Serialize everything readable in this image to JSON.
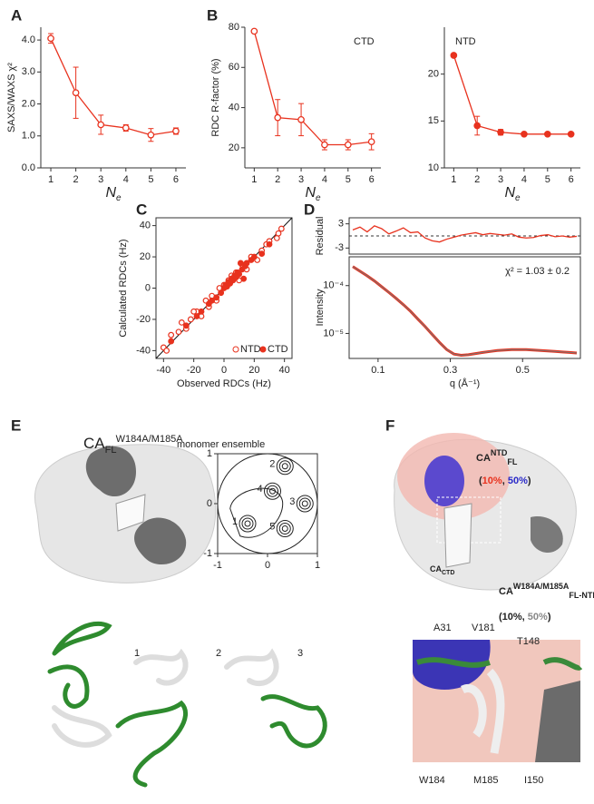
{
  "chart_data": [
    {
      "panel": "A",
      "type": "line",
      "y_label": "SAXS/WAXS χ²",
      "x_label": "N",
      "x_label_sub": "e",
      "x": [
        1,
        2,
        3,
        4,
        5,
        6
      ],
      "values": [
        4.05,
        2.35,
        1.35,
        1.25,
        1.03,
        1.15
      ],
      "errors": [
        0.15,
        0.8,
        0.3,
        0.1,
        0.2,
        0.1
      ],
      "color": "#e8321e",
      "marker": "open",
      "frame": "axes",
      "xlim": [
        0.6,
        6.4
      ],
      "xticks": [
        1,
        2,
        3,
        4,
        5,
        6
      ],
      "ylim": [
        0,
        4.4
      ],
      "yticks": [
        {
          "value": 0,
          "label": "0.0"
        },
        {
          "value": 1,
          "label": "1.0"
        },
        {
          "value": 2,
          "label": "2.0"
        },
        {
          "value": 3,
          "label": "3.0"
        },
        {
          "value": 4,
          "label": "4.0"
        }
      ]
    },
    {
      "panel": "B",
      "type": "line",
      "y_label": "RDC R-factor (%)",
      "x_label": "N",
      "x_label_sub": "e",
      "annotation": "CTD",
      "x": [
        1,
        2,
        3,
        4,
        5,
        6
      ],
      "values": [
        78,
        35,
        34,
        21.5,
        21.5,
        23
      ],
      "errors": [
        0,
        9,
        8,
        2.5,
        2.5,
        4
      ],
      "color": "#e8321e",
      "marker": "open",
      "frame": "axes",
      "xlim": [
        0.6,
        6.4
      ],
      "xticks": [
        1,
        2,
        3,
        4,
        5,
        6
      ],
      "ylim": [
        10,
        80
      ],
      "yticks": [
        20,
        40,
        60,
        80
      ]
    },
    {
      "type": "line",
      "x_label": "N",
      "x_label_sub": "e",
      "annotation": "NTD",
      "x": [
        1,
        2,
        3,
        4,
        5,
        6
      ],
      "values": [
        22,
        14.5,
        13.8,
        13.6,
        13.6,
        13.6
      ],
      "errors": [
        0,
        1,
        0.3,
        0,
        0,
        0
      ],
      "color": "#e8321e",
      "marker": "filled",
      "frame": "axes",
      "xlim": [
        0.6,
        6.4
      ],
      "xticks": [
        1,
        2,
        3,
        4,
        5,
        6
      ],
      "ylim": [
        10,
        25
      ],
      "yticks": [
        10,
        15,
        20
      ]
    },
    {
      "panel": "C",
      "type": "scatter",
      "x_label": "Observed RDCs (Hz)",
      "y_label": "Calculated RDCs (Hz)",
      "frame": "box",
      "diagonal": true,
      "legend": "lower right",
      "xlim": [
        -45,
        45
      ],
      "xticks": [
        -40,
        -20,
        0,
        20,
        40
      ],
      "ylim": [
        -45,
        45
      ],
      "yticks": [
        -40,
        -20,
        0,
        20,
        40
      ],
      "series": [
        {
          "name": "NTD",
          "color": "#e8321e",
          "marker": "open",
          "x": [
            -40,
            -38,
            -35,
            -30,
            -28,
            -25,
            -22,
            -18,
            -15,
            -12,
            -10,
            -8,
            -5,
            -3,
            0,
            3,
            5,
            8,
            10,
            12,
            15,
            18,
            22,
            25,
            28,
            30,
            35,
            38,
            36,
            -20
          ],
          "values": [
            -38,
            -40,
            -30,
            -28,
            -22,
            -26,
            -20,
            -15,
            -18,
            -8,
            -12,
            -5,
            -8,
            0,
            2,
            5,
            8,
            10,
            5,
            15,
            12,
            20,
            18,
            24,
            28,
            30,
            32,
            38,
            35,
            -15
          ]
        },
        {
          "name": "CTD",
          "color": "#e8321e",
          "marker": "filled",
          "x": [
            -35,
            -25,
            -15,
            -10,
            -5,
            -2,
            0,
            1,
            2,
            3,
            4,
            5,
            6,
            7,
            8,
            9,
            10,
            12,
            14,
            15,
            18,
            20,
            25,
            30,
            -8,
            -18,
            11,
            13
          ],
          "values": [
            -34,
            -24,
            -15,
            -10,
            -6,
            -3,
            0,
            2,
            1,
            4,
            3,
            6,
            5,
            8,
            7,
            10,
            9,
            12,
            14,
            16,
            18,
            20,
            22,
            28,
            -8,
            -18,
            16,
            6
          ]
        }
      ]
    },
    {
      "panel": "D",
      "type": "line",
      "y_label": "Residual",
      "frame": "box",
      "color": "#e8321e",
      "reference_line": 0,
      "x": [
        0.03,
        0.05,
        0.07,
        0.09,
        0.11,
        0.13,
        0.15,
        0.17,
        0.19,
        0.21,
        0.23,
        0.25,
        0.27,
        0.29,
        0.31,
        0.33,
        0.35,
        0.37,
        0.39,
        0.41,
        0.43,
        0.45,
        0.47,
        0.49,
        0.51,
        0.53,
        0.55,
        0.57,
        0.59,
        0.61,
        0.63,
        0.65
      ],
      "values": [
        1.5,
        2.2,
        1.0,
        2.5,
        1.8,
        0.5,
        1.2,
        2.0,
        0.8,
        1.0,
        -0.5,
        -1.2,
        -1.5,
        -0.8,
        -0.3,
        0.2,
        0.5,
        0.8,
        0.3,
        0.6,
        0.4,
        0.2,
        0.5,
        -0.3,
        -0.5,
        -0.4,
        0.1,
        0.3,
        -0.2,
        0.0,
        -0.3,
        -0.1
      ],
      "xlim": [
        0.02,
        0.66
      ],
      "ylim": [
        -4.5,
        4.5
      ],
      "yticks": [
        -3,
        3
      ]
    },
    {
      "type": "line",
      "y_label": "Intensity",
      "x_label": "q (Å⁻¹)",
      "annotation": "χ² = 1.03 ± 0.2",
      "frame": "box",
      "color": "#e8321e",
      "log_scale": true,
      "x": [
        0.03,
        0.05,
        0.07,
        0.09,
        0.11,
        0.13,
        0.15,
        0.17,
        0.19,
        0.21,
        0.23,
        0.25,
        0.27,
        0.29,
        0.31,
        0.33,
        0.35,
        0.37,
        0.39,
        0.41,
        0.43,
        0.45,
        0.47,
        0.49,
        0.51,
        0.53,
        0.55,
        0.57,
        0.59,
        0.61,
        0.63,
        0.65
      ],
      "values": [
        0.00025,
        0.0002,
        0.00016,
        0.000125,
        9.5e-05,
        7.2e-05,
        5.4e-05,
        4e-05,
        2.9e-05,
        2e-05,
        1.4e-05,
        9.5e-06,
        6.5e-06,
        4.6e-06,
        3.7e-06,
        3.5e-06,
        3.6e-06,
        3.8e-06,
        4e-06,
        4.2e-06,
        4.4e-06,
        4.5e-06,
        4.6e-06,
        4.6e-06,
        4.6e-06,
        4.5e-06,
        4.4e-06,
        4.3e-06,
        4.2e-06,
        4.1e-06,
        4e-06,
        3.9e-06
      ],
      "xlim": [
        0.02,
        0.66
      ],
      "xticks": [
        0.1,
        0.3,
        0.5
      ],
      "ylim": [
        3e-06,
        0.0004
      ],
      "yticks": [
        {
          "value": 0.0001,
          "label": "10⁻⁴"
        },
        {
          "value": 1e-05,
          "label": "10⁻⁵"
        }
      ]
    },
    {
      "panel": "E",
      "type": "contour",
      "frame": "box",
      "title_main": "CA",
      "title_sub": "FL",
      "title_sup": "W184A/M185A",
      "title_rest": "monomer ensemble",
      "xlim": [
        -1,
        1
      ],
      "xticks": [
        -1,
        0,
        1
      ],
      "ylim": [
        -1,
        1
      ],
      "yticks": [
        -1,
        0,
        1
      ],
      "peaks": [
        {
          "label": "1",
          "x": -0.4,
          "y": -0.4
        },
        {
          "label": "2",
          "x": 0.35,
          "y": 0.75
        },
        {
          "label": "3",
          "x": 0.75,
          "y": 0.0
        },
        {
          "label": "4",
          "x": 0.1,
          "y": 0.25
        },
        {
          "label": "5",
          "x": 0.35,
          "y": -0.5
        }
      ],
      "structure_labels": [
        "1",
        "2",
        "3"
      ]
    }
  ],
  "panel_F": {
    "letter": "F",
    "ntd": {
      "main": "CA",
      "sup": "NTD",
      "sub": "FL",
      "pct": [
        "(",
        "10%",
        ", ",
        "50%",
        ")"
      ]
    },
    "ctd": {
      "main": "CA",
      "sub": "CTD"
    },
    "fl_ntd": {
      "main": "CA",
      "sup": "W184A/M185A",
      "sub": "FL-NTD",
      "pct": [
        "(10%, ",
        "50%",
        ")"
      ]
    },
    "residues": [
      "A31",
      "V181",
      "T148",
      "W184",
      "M185",
      "I150"
    ]
  }
}
